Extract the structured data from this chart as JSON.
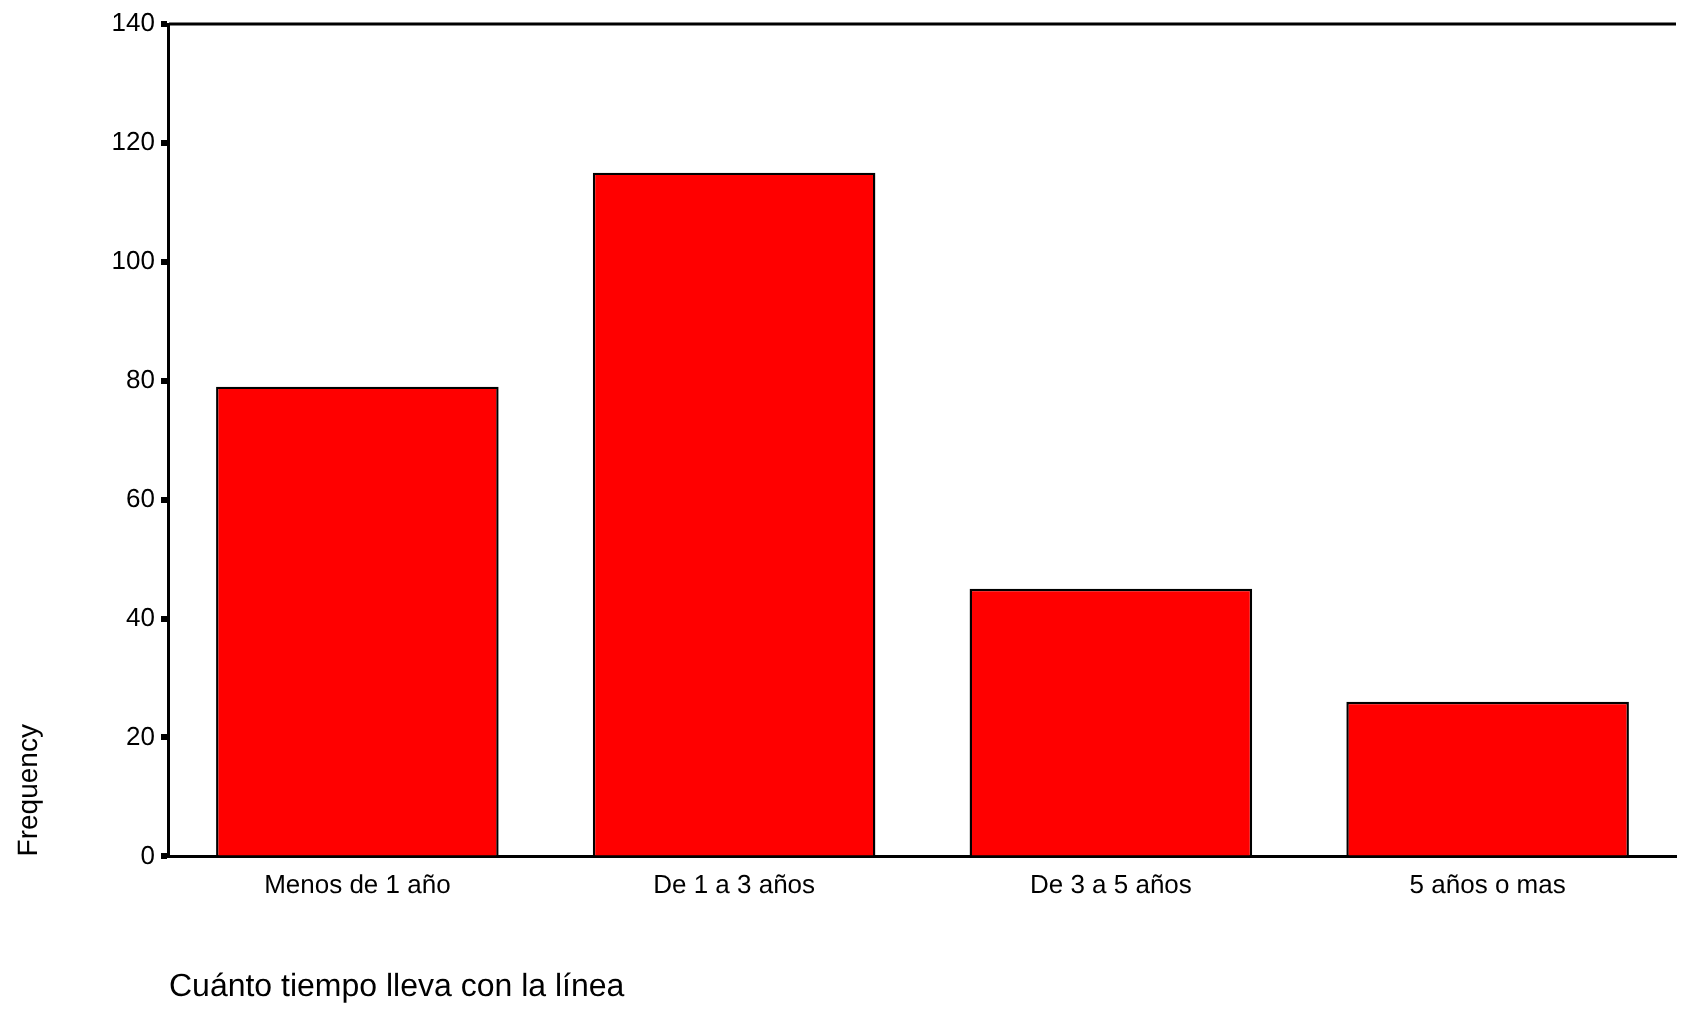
{
  "chart_data": {
    "type": "bar",
    "xlabel": "Cuánto tiempo lleva con la línea",
    "ylabel": "Frequency",
    "categories": [
      "Menos de 1 año",
      "De 1 a 3 años",
      "De 3 a 5 años",
      "5 años o mas"
    ],
    "values": [
      79,
      115,
      45,
      26
    ],
    "color": "#ff0000",
    "ylim": [
      0,
      140
    ],
    "yticks": [
      0,
      20,
      40,
      60,
      80,
      100,
      120,
      140
    ],
    "grid": false,
    "legend": false
  }
}
